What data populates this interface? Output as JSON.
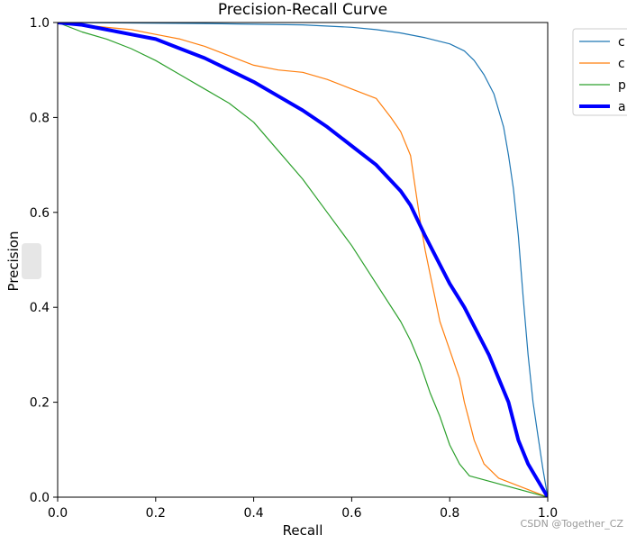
{
  "chart_data": {
    "type": "line",
    "title": "Precision-Recall Curve",
    "xlabel": "Recall",
    "ylabel": "Precision",
    "xlim": [
      0,
      1
    ],
    "ylim": [
      0,
      1
    ],
    "xticks": [
      "0.0",
      "0.2",
      "0.4",
      "0.6",
      "0.8",
      "1.0"
    ],
    "yticks": [
      "0.0",
      "0.2",
      "0.4",
      "0.6",
      "0.8",
      "1.0"
    ],
    "grid": false,
    "legend_position": "outside-top-right",
    "series": [
      {
        "name": "c",
        "color": "#1f77b4",
        "width": 1.2,
        "points": [
          [
            0,
            1
          ],
          [
            0.3,
            0.998
          ],
          [
            0.5,
            0.995
          ],
          [
            0.6,
            0.99
          ],
          [
            0.65,
            0.985
          ],
          [
            0.7,
            0.978
          ],
          [
            0.75,
            0.968
          ],
          [
            0.8,
            0.955
          ],
          [
            0.83,
            0.94
          ],
          [
            0.85,
            0.92
          ],
          [
            0.87,
            0.89
          ],
          [
            0.89,
            0.85
          ],
          [
            0.91,
            0.78
          ],
          [
            0.92,
            0.72
          ],
          [
            0.93,
            0.65
          ],
          [
            0.94,
            0.55
          ],
          [
            0.95,
            0.42
          ],
          [
            0.96,
            0.3
          ],
          [
            0.97,
            0.2
          ],
          [
            0.98,
            0.13
          ],
          [
            0.99,
            0.06
          ],
          [
            1.0,
            0
          ]
        ]
      },
      {
        "name": "c",
        "color": "#ff7f0e",
        "width": 1.2,
        "points": [
          [
            0,
            1
          ],
          [
            0.05,
            0.995
          ],
          [
            0.1,
            0.99
          ],
          [
            0.15,
            0.985
          ],
          [
            0.2,
            0.975
          ],
          [
            0.25,
            0.965
          ],
          [
            0.3,
            0.95
          ],
          [
            0.35,
            0.93
          ],
          [
            0.4,
            0.91
          ],
          [
            0.45,
            0.9
          ],
          [
            0.5,
            0.895
          ],
          [
            0.55,
            0.88
          ],
          [
            0.6,
            0.86
          ],
          [
            0.65,
            0.84
          ],
          [
            0.68,
            0.8
          ],
          [
            0.7,
            0.77
          ],
          [
            0.72,
            0.72
          ],
          [
            0.73,
            0.65
          ],
          [
            0.74,
            0.58
          ],
          [
            0.75,
            0.52
          ],
          [
            0.76,
            0.47
          ],
          [
            0.77,
            0.42
          ],
          [
            0.78,
            0.37
          ],
          [
            0.8,
            0.31
          ],
          [
            0.82,
            0.25
          ],
          [
            0.83,
            0.2
          ],
          [
            0.84,
            0.16
          ],
          [
            0.85,
            0.12
          ],
          [
            0.87,
            0.07
          ],
          [
            0.9,
            0.04
          ],
          [
            1.0,
            0
          ]
        ]
      },
      {
        "name": "p",
        "color": "#2ca02c",
        "width": 1.2,
        "points": [
          [
            0,
            1
          ],
          [
            0.05,
            0.98
          ],
          [
            0.1,
            0.965
          ],
          [
            0.15,
            0.945
          ],
          [
            0.2,
            0.92
          ],
          [
            0.25,
            0.89
          ],
          [
            0.3,
            0.86
          ],
          [
            0.35,
            0.83
          ],
          [
            0.4,
            0.79
          ],
          [
            0.45,
            0.73
          ],
          [
            0.5,
            0.67
          ],
          [
            0.55,
            0.6
          ],
          [
            0.6,
            0.53
          ],
          [
            0.65,
            0.45
          ],
          [
            0.7,
            0.37
          ],
          [
            0.72,
            0.33
          ],
          [
            0.74,
            0.28
          ],
          [
            0.76,
            0.22
          ],
          [
            0.78,
            0.17
          ],
          [
            0.8,
            0.11
          ],
          [
            0.82,
            0.07
          ],
          [
            0.84,
            0.045
          ],
          [
            1.0,
            0
          ]
        ]
      },
      {
        "name": "a",
        "color": "#0000ff",
        "width": 4,
        "points": [
          [
            0,
            1
          ],
          [
            0.05,
            0.995
          ],
          [
            0.1,
            0.985
          ],
          [
            0.15,
            0.975
          ],
          [
            0.2,
            0.965
          ],
          [
            0.25,
            0.945
          ],
          [
            0.3,
            0.925
          ],
          [
            0.35,
            0.9
          ],
          [
            0.4,
            0.875
          ],
          [
            0.45,
            0.845
          ],
          [
            0.5,
            0.815
          ],
          [
            0.55,
            0.78
          ],
          [
            0.6,
            0.74
          ],
          [
            0.65,
            0.7
          ],
          [
            0.7,
            0.645
          ],
          [
            0.72,
            0.615
          ],
          [
            0.75,
            0.55
          ],
          [
            0.78,
            0.49
          ],
          [
            0.8,
            0.45
          ],
          [
            0.83,
            0.4
          ],
          [
            0.85,
            0.36
          ],
          [
            0.88,
            0.3
          ],
          [
            0.9,
            0.25
          ],
          [
            0.92,
            0.2
          ],
          [
            0.94,
            0.12
          ],
          [
            0.96,
            0.07
          ],
          [
            1.0,
            0
          ]
        ]
      }
    ]
  },
  "watermark": "CSDN @Together_CZ"
}
